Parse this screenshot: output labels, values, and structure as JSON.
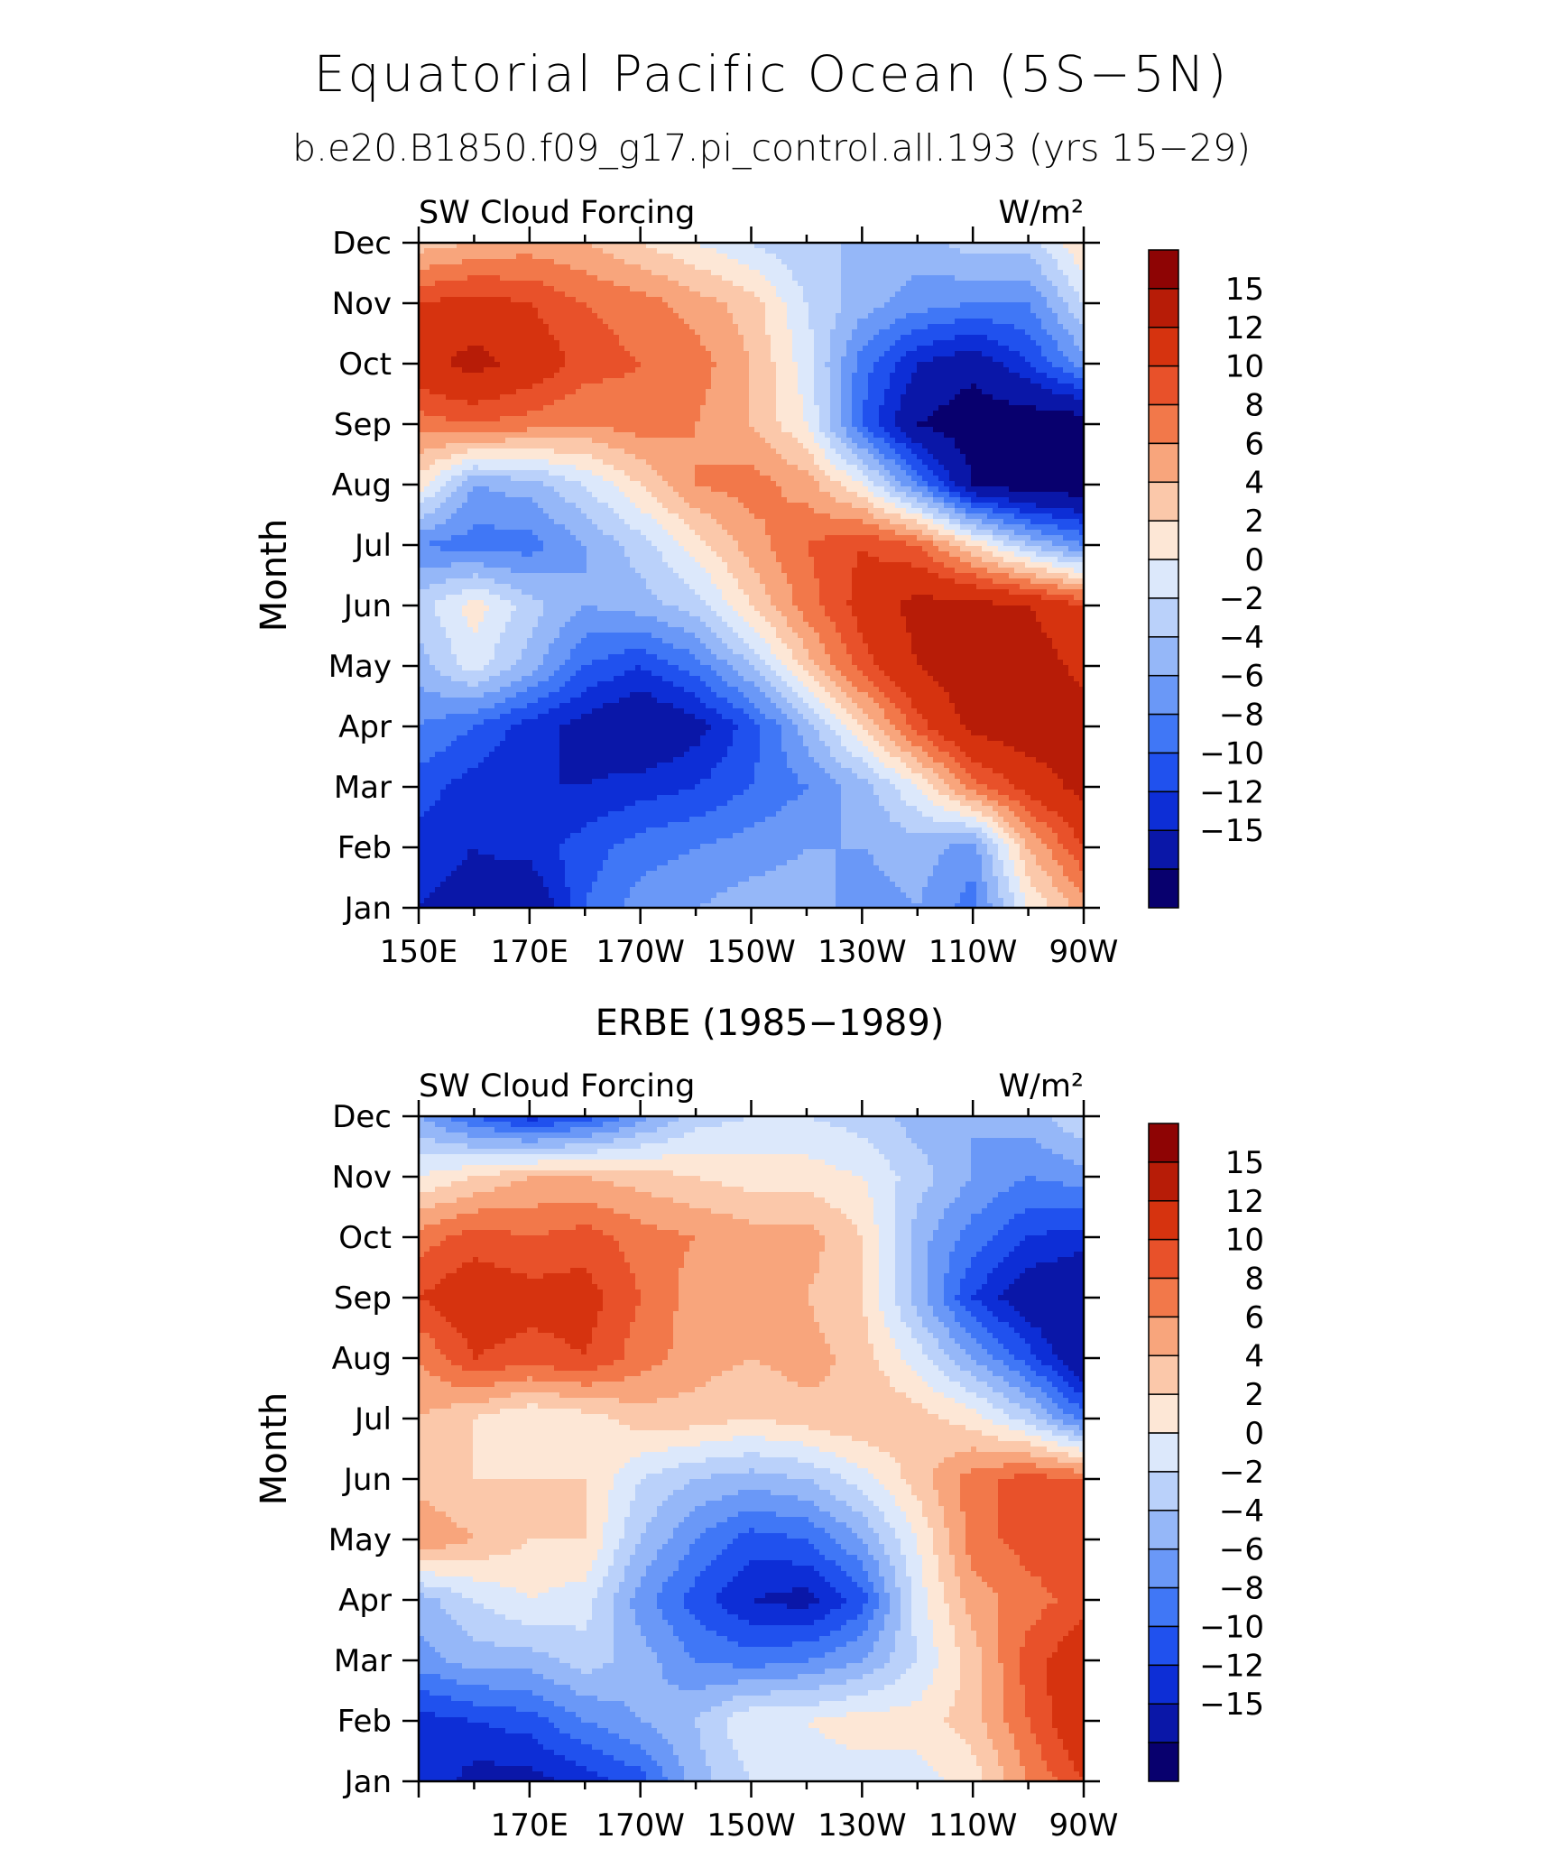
{
  "title": "Equatorial Pacific Ocean (5S−5N)",
  "subtitle": "b.e20.B1850.f09_g17.pi_control.all.193 (yrs 15−29)",
  "colors": [
    "#08006e",
    "#0a17a8",
    "#0d2ed6",
    "#2051ee",
    "#4077f6",
    "#6a98f7",
    "#95b7f8",
    "#bad1fa",
    "#dce8fb",
    "#fde7d6",
    "#fbc8aa",
    "#f8a57c",
    "#f2784a",
    "#e8512a",
    "#d6330f",
    "#b71c07",
    "#8e0404"
  ],
  "chart_data": [
    {
      "type": "heatmap",
      "name": "model",
      "left_title": "SW Cloud Forcing",
      "right_title": "W/m²",
      "ylabel": "Month",
      "xlabel": "",
      "x_tick_labels": [
        "150E",
        "170E",
        "170W",
        "150W",
        "130W",
        "110W",
        "90W"
      ],
      "y_tick_labels": [
        "Jan",
        "Feb",
        "Mar",
        "Apr",
        "May",
        "Jun",
        "Jul",
        "Aug",
        "Sep",
        "Oct",
        "Nov",
        "Dec"
      ],
      "colorbar_labels": [
        "15",
        "12",
        "10",
        "8",
        "6",
        "4",
        "2",
        "0",
        "−2",
        "−4",
        "−6",
        "−8",
        "−10",
        "−12",
        "−15"
      ],
      "x": [
        150,
        160,
        170,
        180,
        190,
        200,
        210,
        220,
        230,
        240,
        250,
        260,
        270
      ],
      "values": [
        [
          -12,
          -13,
          -15,
          -8,
          -5,
          -4,
          -3,
          -3,
          -5,
          -4,
          -7,
          2,
          7
        ],
        [
          -11,
          -12,
          -11,
          -9,
          -7,
          -6,
          -5,
          -4,
          -4,
          -3,
          -5,
          6,
          12
        ],
        [
          -9,
          -11,
          -12,
          -12,
          -11,
          -10,
          -8,
          -6,
          -3,
          2,
          9,
          13,
          16
        ],
        [
          -6,
          -8,
          -11,
          -13,
          -15,
          -13,
          -9,
          -3,
          4,
          11,
          16,
          17,
          17
        ],
        [
          -3,
          1,
          -3,
          -8,
          -10,
          -7,
          -2,
          5,
          11,
          15,
          17,
          17,
          14
        ],
        [
          -1,
          3,
          -1,
          -4,
          -3,
          -1,
          4,
          9,
          13,
          16,
          16,
          15,
          12
        ],
        [
          -6,
          -7,
          -7,
          -4,
          -1,
          3,
          7,
          10,
          12,
          10,
          4,
          -2,
          -6
        ],
        [
          3,
          -4,
          -3,
          0,
          4,
          8,
          9,
          7,
          2,
          -6,
          -15,
          -17,
          -17
        ],
        [
          9,
          10,
          9,
          8,
          9,
          8,
          6,
          2,
          -8,
          -15,
          -17,
          -17,
          -17
        ],
        [
          14,
          16,
          14,
          11,
          10,
          9,
          6,
          1,
          -7,
          -12,
          -14,
          -10,
          -5
        ],
        [
          12,
          13,
          12,
          10,
          9,
          7,
          5,
          0,
          -3,
          -5,
          -6,
          -6,
          0
        ],
        [
          5,
          6,
          7,
          6,
          4,
          2,
          0,
          -2,
          -2,
          -3,
          -1,
          -1,
          4
        ]
      ]
    },
    {
      "type": "heatmap",
      "name": "obs",
      "panel_title": "ERBE (1985−1989)",
      "left_title": "SW Cloud Forcing",
      "right_title": "W/m²",
      "ylabel": "Month",
      "xlabel": "",
      "x_tick_labels": [
        "170E",
        "170W",
        "150W",
        "130W",
        "110W",
        "90W"
      ],
      "y_tick_labels": [
        "Jan",
        "Feb",
        "Mar",
        "Apr",
        "May",
        "Jun",
        "Jul",
        "Aug",
        "Sep",
        "Oct",
        "Nov",
        "Dec"
      ],
      "colorbar_labels": [
        "15",
        "12",
        "10",
        "8",
        "6",
        "4",
        "2",
        "0",
        "−2",
        "−4",
        "−6",
        "−8",
        "−10",
        "−12",
        "−15"
      ],
      "x": [
        150,
        160,
        170,
        180,
        190,
        200,
        210,
        220,
        230,
        240,
        250,
        260,
        270
      ],
      "values": [
        [
          -10,
          -13,
          -13,
          -11,
          -9,
          -3,
          0,
          1,
          1,
          1,
          3,
          8,
          12
        ],
        [
          -11,
          -10,
          -9,
          -6,
          -4,
          -2,
          2,
          2,
          3,
          3,
          5,
          10,
          15
        ],
        [
          -5,
          -3,
          -3,
          -1,
          -3,
          -6,
          -7,
          -6,
          -4,
          0,
          5,
          11,
          14
        ],
        [
          -3,
          0,
          2,
          1,
          -5,
          -9,
          -12,
          -13,
          -9,
          1,
          7,
          9,
          11
        ],
        [
          8,
          6,
          4,
          4,
          -2,
          -6,
          -9,
          -8,
          -4,
          2,
          9,
          11,
          12
        ],
        [
          5,
          4,
          4,
          4,
          0,
          -2,
          -3,
          -2,
          1,
          5,
          9,
          11,
          10
        ],
        [
          6,
          4,
          2,
          3,
          5,
          5,
          4,
          5,
          6,
          5,
          3,
          -1,
          -7
        ],
        [
          8,
          12,
          11,
          12,
          9,
          7,
          6,
          7,
          5,
          1,
          -4,
          -9,
          -15
        ],
        [
          12,
          14,
          13,
          13,
          10,
          7,
          6,
          6,
          4,
          -3,
          -10,
          -14,
          -15
        ],
        [
          9,
          11,
          10,
          11,
          9,
          8,
          7,
          7,
          4,
          -3,
          -7,
          -10,
          -11
        ],
        [
          2,
          4,
          6,
          6,
          5,
          4,
          3,
          3,
          2,
          -1,
          -4,
          -6,
          -5
        ],
        [
          -4,
          -8,
          -11,
          -9,
          -5,
          -1,
          0,
          0,
          -1,
          -3,
          -4,
          -3,
          0
        ]
      ]
    }
  ]
}
